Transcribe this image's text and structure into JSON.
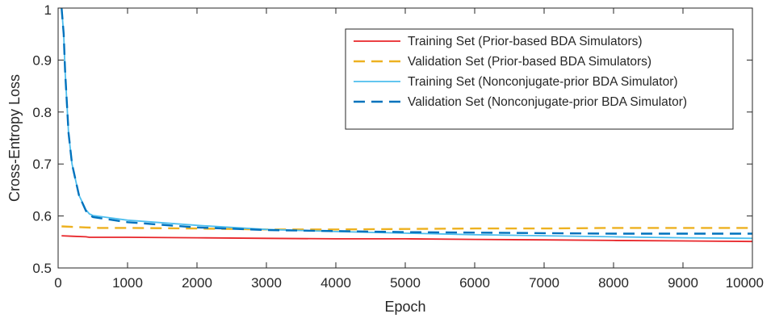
{
  "chart_data": {
    "type": "line",
    "title": "",
    "xlabel": "Epoch",
    "ylabel": "Cross-Entropy Loss",
    "xlim": [
      0,
      10000
    ],
    "ylim": [
      0.5,
      1
    ],
    "xticks": [
      0,
      1000,
      2000,
      3000,
      4000,
      5000,
      6000,
      7000,
      8000,
      9000,
      10000
    ],
    "yticks": [
      0.5,
      0.6,
      0.7,
      0.8,
      0.9,
      1
    ],
    "xtick_labels": [
      "0",
      "1000",
      "2000",
      "3000",
      "4000",
      "5000",
      "6000",
      "7000",
      "8000",
      "9000",
      "10000"
    ],
    "ytick_labels": [
      "0.5",
      "0.6",
      "0.7",
      "0.8",
      "0.9",
      "1"
    ],
    "grid": false,
    "legend_position": "top-right",
    "series": [
      {
        "name": "Training Set (Prior-based BDA Simulators)",
        "color": "#e8262a",
        "style": "solid",
        "x": [
          50,
          200,
          400,
          450,
          1000,
          2000,
          3000,
          4000,
          5000,
          6000,
          7000,
          8000,
          9000,
          10000
        ],
        "y": [
          0.562,
          0.561,
          0.56,
          0.559,
          0.559,
          0.558,
          0.557,
          0.556,
          0.556,
          0.555,
          0.554,
          0.553,
          0.552,
          0.551
        ]
      },
      {
        "name": "Validation Set (Prior-based BDA Simulators)",
        "color": "#edb120",
        "style": "dashed",
        "x": [
          50,
          200,
          400,
          600,
          1000,
          2000,
          3000,
          4000,
          5000,
          6000,
          7000,
          8000,
          9000,
          10000
        ],
        "y": [
          0.58,
          0.579,
          0.578,
          0.577,
          0.577,
          0.576,
          0.574,
          0.574,
          0.575,
          0.576,
          0.576,
          0.577,
          0.577,
          0.577
        ]
      },
      {
        "name": "Training Set (Nonconjugate-prior BDA Simulator)",
        "color": "#4dbeee",
        "style": "solid",
        "x": [
          50,
          80,
          100,
          150,
          200,
          300,
          400,
          450,
          500,
          1000,
          2000,
          3000,
          4000,
          5000,
          6000,
          7000,
          8000,
          9000,
          10000
        ],
        "y": [
          1.0,
          0.95,
          0.88,
          0.76,
          0.7,
          0.64,
          0.612,
          0.604,
          0.601,
          0.592,
          0.582,
          0.574,
          0.57,
          0.567,
          0.564,
          0.562,
          0.56,
          0.558,
          0.557
        ]
      },
      {
        "name": "Validation Set (Nonconjugate-prior BDA Simulator)",
        "color": "#0072bd",
        "style": "dashed",
        "x": [
          50,
          80,
          100,
          150,
          200,
          300,
          400,
          450,
          500,
          1000,
          2000,
          3000,
          4000,
          5000,
          6000,
          7000,
          8000,
          9000,
          10000
        ],
        "y": [
          1.0,
          0.95,
          0.88,
          0.76,
          0.7,
          0.64,
          0.61,
          0.602,
          0.598,
          0.588,
          0.578,
          0.573,
          0.571,
          0.569,
          0.568,
          0.567,
          0.566,
          0.566,
          0.566
        ]
      }
    ]
  }
}
